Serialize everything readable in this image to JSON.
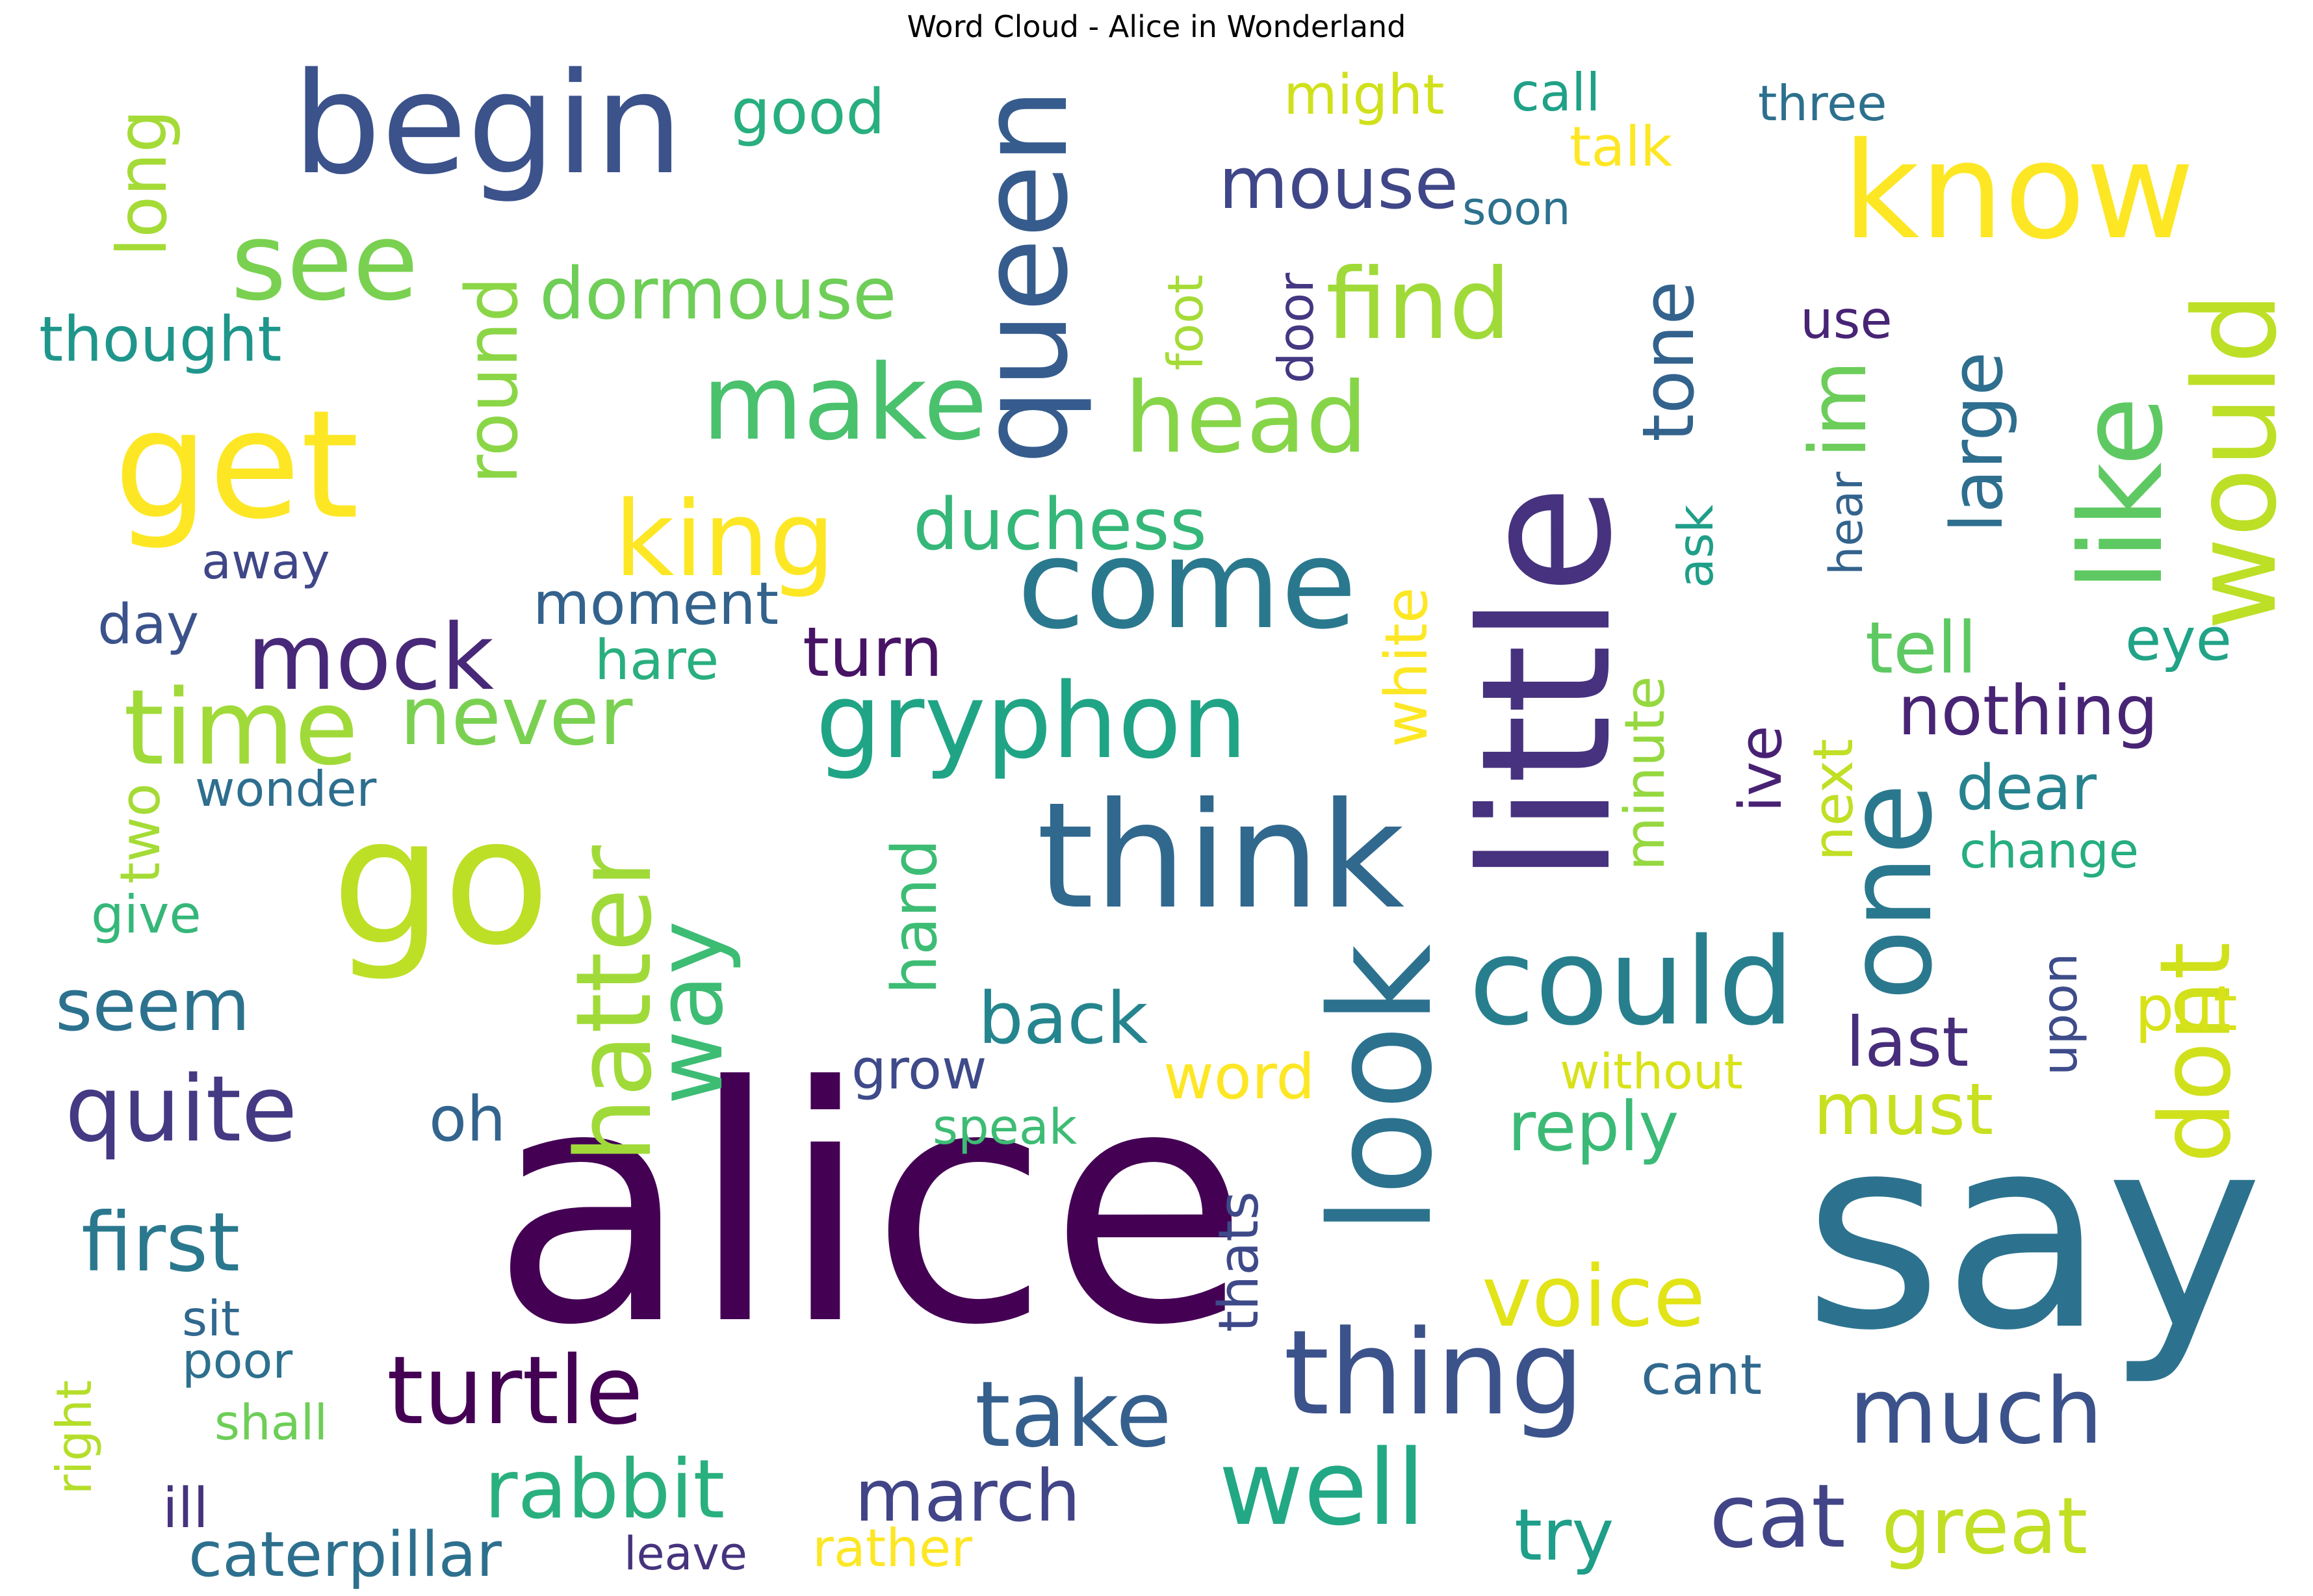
{
  "chart_data": {
    "type": "wordcloud",
    "title": "Word Cloud - Alice in Wonderland",
    "colormap": "viridis",
    "words": [
      {
        "text": "alice",
        "weight": 1.0,
        "color": "#440154",
        "orientation": "horizontal"
      },
      {
        "text": "say",
        "weight": 0.95,
        "color": "#2c728e",
        "orientation": "horizontal"
      },
      {
        "text": "little",
        "weight": 0.62,
        "color": "#46327e",
        "orientation": "vertical"
      },
      {
        "text": "go",
        "weight": 0.6,
        "color": "#bddf26",
        "orientation": "horizontal"
      },
      {
        "text": "think",
        "weight": 0.5,
        "color": "#31688e",
        "orientation": "horizontal"
      },
      {
        "text": "look",
        "weight": 0.48,
        "color": "#2c728e",
        "orientation": "vertical"
      },
      {
        "text": "begin",
        "weight": 0.45,
        "color": "#3b528b",
        "orientation": "horizontal"
      },
      {
        "text": "queen",
        "weight": 0.45,
        "color": "#365c8d",
        "orientation": "vertical"
      },
      {
        "text": "know",
        "weight": 0.44,
        "color": "#fde725",
        "orientation": "horizontal"
      },
      {
        "text": "get",
        "weight": 0.44,
        "color": "#fde725",
        "orientation": "horizontal"
      },
      {
        "text": "come",
        "weight": 0.42,
        "color": "#2a788e",
        "orientation": "horizontal"
      },
      {
        "text": "one",
        "weight": 0.4,
        "color": "#2a788e",
        "orientation": "vertical"
      },
      {
        "text": "like",
        "weight": 0.38,
        "color": "#5ec962",
        "orientation": "vertical"
      },
      {
        "text": "would",
        "weight": 0.37,
        "color": "#bddf26",
        "orientation": "vertical"
      },
      {
        "text": "could",
        "weight": 0.35,
        "color": "#277f8e",
        "orientation": "horizontal"
      },
      {
        "text": "thing",
        "weight": 0.35,
        "color": "#3b528b",
        "orientation": "horizontal"
      },
      {
        "text": "make",
        "weight": 0.33,
        "color": "#4ac16d",
        "orientation": "horizontal"
      },
      {
        "text": "see",
        "weight": 0.33,
        "color": "#7ad151",
        "orientation": "horizontal"
      },
      {
        "text": "time",
        "weight": 0.33,
        "color": "#a0da39",
        "orientation": "horizontal"
      },
      {
        "text": "hatter",
        "weight": 0.32,
        "color": "#a0da39",
        "orientation": "vertical"
      },
      {
        "text": "gryphon",
        "weight": 0.32,
        "color": "#20a486",
        "orientation": "horizontal"
      },
      {
        "text": "well",
        "weight": 0.31,
        "color": "#22a884",
        "orientation": "horizontal"
      },
      {
        "text": "head",
        "weight": 0.31,
        "color": "#86d549",
        "orientation": "horizontal"
      },
      {
        "text": "king",
        "weight": 0.31,
        "color": "#fde725",
        "orientation": "horizontal"
      },
      {
        "text": "find",
        "weight": 0.3,
        "color": "#a0da39",
        "orientation": "horizontal"
      },
      {
        "text": "dont",
        "weight": 0.3,
        "color": "#d0e11c",
        "orientation": "vertical"
      },
      {
        "text": "mock",
        "weight": 0.29,
        "color": "#482878",
        "orientation": "horizontal"
      },
      {
        "text": "turtle",
        "weight": 0.29,
        "color": "#440154",
        "orientation": "horizontal"
      },
      {
        "text": "quite",
        "weight": 0.28,
        "color": "#443983",
        "orientation": "horizontal"
      },
      {
        "text": "way",
        "weight": 0.28,
        "color": "#3dbc74",
        "orientation": "vertical"
      },
      {
        "text": "voice",
        "weight": 0.27,
        "color": "#e2e418",
        "orientation": "horizontal"
      },
      {
        "text": "cat",
        "weight": 0.27,
        "color": "#414487",
        "orientation": "horizontal"
      },
      {
        "text": "take",
        "weight": 0.27,
        "color": "#355f8d",
        "orientation": "horizontal"
      },
      {
        "text": "much",
        "weight": 0.26,
        "color": "#3b528b",
        "orientation": "horizontal"
      },
      {
        "text": "rabbit",
        "weight": 0.26,
        "color": "#2ab07f",
        "orientation": "horizontal"
      },
      {
        "text": "first",
        "weight": 0.25,
        "color": "#2a788e",
        "orientation": "horizontal"
      },
      {
        "text": "never",
        "weight": 0.25,
        "color": "#7ad151",
        "orientation": "horizontal"
      },
      {
        "text": "great",
        "weight": 0.24,
        "color": "#c2df23",
        "orientation": "horizontal"
      },
      {
        "text": "duchess",
        "weight": 0.23,
        "color": "#35b779",
        "orientation": "horizontal"
      },
      {
        "text": "im",
        "weight": 0.23,
        "color": "#6ccd5a",
        "orientation": "vertical"
      },
      {
        "text": "tone",
        "weight": 0.22,
        "color": "#33638d",
        "orientation": "vertical"
      },
      {
        "text": "dormouse",
        "weight": 0.22,
        "color": "#6ece58",
        "orientation": "horizontal"
      },
      {
        "text": "try",
        "weight": 0.22,
        "color": "#1f9e89",
        "orientation": "horizontal"
      },
      {
        "text": "must",
        "weight": 0.22,
        "color": "#c8e020",
        "orientation": "horizontal"
      },
      {
        "text": "round",
        "weight": 0.21,
        "color": "#8bd646",
        "orientation": "vertical"
      },
      {
        "text": "mouse",
        "weight": 0.21,
        "color": "#3f4788",
        "orientation": "horizontal"
      },
      {
        "text": "large",
        "weight": 0.21,
        "color": "#2e6e8e",
        "orientation": "vertical"
      },
      {
        "text": "tell",
        "weight": 0.21,
        "color": "#5ec962",
        "orientation": "horizontal"
      },
      {
        "text": "back",
        "weight": 0.2,
        "color": "#25858e",
        "orientation": "horizontal"
      },
      {
        "text": "march",
        "weight": 0.2,
        "color": "#414487",
        "orientation": "horizontal"
      },
      {
        "text": "seem",
        "weight": 0.2,
        "color": "#2c728e",
        "orientation": "horizontal"
      },
      {
        "text": "turn",
        "weight": 0.19,
        "color": "#471365",
        "orientation": "horizontal"
      },
      {
        "text": "nothing",
        "weight": 0.19,
        "color": "#482475",
        "orientation": "horizontal"
      },
      {
        "text": "reply",
        "weight": 0.19,
        "color": "#3aba76",
        "orientation": "horizontal"
      },
      {
        "text": "last",
        "weight": 0.19,
        "color": "#472d7b",
        "orientation": "horizontal"
      },
      {
        "text": "long",
        "weight": 0.19,
        "color": "#a5db36",
        "orientation": "vertical"
      },
      {
        "text": "good",
        "weight": 0.18,
        "color": "#29af7f",
        "orientation": "horizontal"
      },
      {
        "text": "dear",
        "weight": 0.18,
        "color": "#26828e",
        "orientation": "horizontal"
      },
      {
        "text": "caterpillar",
        "weight": 0.18,
        "color": "#2d708e",
        "orientation": "horizontal"
      },
      {
        "text": "oh",
        "weight": 0.18,
        "color": "#32648e",
        "orientation": "horizontal"
      },
      {
        "text": "word",
        "weight": 0.18,
        "color": "#fde725",
        "orientation": "horizontal"
      },
      {
        "text": "thought",
        "weight": 0.18,
        "color": "#1f968b",
        "orientation": "horizontal"
      },
      {
        "text": "put",
        "weight": 0.18,
        "color": "#d8e219",
        "orientation": "horizontal"
      },
      {
        "text": "hand",
        "weight": 0.18,
        "color": "#3dbc74",
        "orientation": "vertical"
      },
      {
        "text": "white",
        "weight": 0.17,
        "color": "#fde725",
        "orientation": "vertical"
      },
      {
        "text": "moment",
        "weight": 0.17,
        "color": "#33638d",
        "orientation": "horizontal"
      },
      {
        "text": "eye",
        "weight": 0.17,
        "color": "#20a386",
        "orientation": "horizontal"
      },
      {
        "text": "two",
        "weight": 0.17,
        "color": "#a5db36",
        "orientation": "vertical"
      },
      {
        "text": "ill",
        "weight": 0.17,
        "color": "#46337e",
        "orientation": "horizontal"
      },
      {
        "text": "minute",
        "weight": 0.16,
        "color": "#95d840",
        "orientation": "vertical"
      },
      {
        "text": "thats",
        "weight": 0.16,
        "color": "#3e4989",
        "orientation": "vertical"
      },
      {
        "text": "grow",
        "weight": 0.16,
        "color": "#3e4a89",
        "orientation": "horizontal"
      },
      {
        "text": "ive",
        "weight": 0.16,
        "color": "#482173",
        "orientation": "vertical"
      },
      {
        "text": "hare",
        "weight": 0.16,
        "color": "#29af7f",
        "orientation": "horizontal"
      },
      {
        "text": "next",
        "weight": 0.15,
        "color": "#c0df25",
        "orientation": "vertical"
      },
      {
        "text": "might",
        "weight": 0.15,
        "color": "#d0e11c",
        "orientation": "horizontal"
      },
      {
        "text": "talk",
        "weight": 0.15,
        "color": "#fde725",
        "orientation": "horizontal"
      },
      {
        "text": "cant",
        "weight": 0.15,
        "color": "#31688e",
        "orientation": "horizontal"
      },
      {
        "text": "day",
        "weight": 0.15,
        "color": "#3b528b",
        "orientation": "horizontal"
      },
      {
        "text": "give",
        "weight": 0.15,
        "color": "#35b779",
        "orientation": "horizontal"
      },
      {
        "text": "use",
        "weight": 0.15,
        "color": "#482475",
        "orientation": "horizontal"
      },
      {
        "text": "call",
        "weight": 0.15,
        "color": "#1fa187",
        "orientation": "horizontal"
      },
      {
        "text": "foot",
        "weight": 0.15,
        "color": "#a5db36",
        "orientation": "vertical"
      },
      {
        "text": "right",
        "weight": 0.15,
        "color": "#b5de2b",
        "orientation": "vertical"
      },
      {
        "text": "speak",
        "weight": 0.15,
        "color": "#3dbc74",
        "orientation": "horizontal"
      },
      {
        "text": "door",
        "weight": 0.14,
        "color": "#453781",
        "orientation": "vertical"
      },
      {
        "text": "three",
        "weight": 0.14,
        "color": "#2d708e",
        "orientation": "horizontal"
      },
      {
        "text": "without",
        "weight": 0.14,
        "color": "#d8e219",
        "orientation": "horizontal"
      },
      {
        "text": "ask",
        "weight": 0.14,
        "color": "#1f9e89",
        "orientation": "vertical"
      },
      {
        "text": "wonder",
        "weight": 0.14,
        "color": "#2e6e8e",
        "orientation": "horizontal"
      },
      {
        "text": "change",
        "weight": 0.14,
        "color": "#26ad81",
        "orientation": "horizontal"
      },
      {
        "text": "sit",
        "weight": 0.14,
        "color": "#31688e",
        "orientation": "horizontal"
      },
      {
        "text": "away",
        "weight": 0.14,
        "color": "#3f4788",
        "orientation": "horizontal"
      },
      {
        "text": "poor",
        "weight": 0.14,
        "color": "#2d708e",
        "orientation": "horizontal"
      },
      {
        "text": "upon",
        "weight": 0.14,
        "color": "#3e4c8a",
        "orientation": "vertical"
      },
      {
        "text": "shall",
        "weight": 0.14,
        "color": "#6ece58",
        "orientation": "horizontal"
      },
      {
        "text": "hear",
        "weight": 0.13,
        "color": "#33638d",
        "orientation": "vertical"
      },
      {
        "text": "leave",
        "weight": 0.13,
        "color": "#46337e",
        "orientation": "horizontal"
      },
      {
        "text": "soon",
        "weight": 0.13,
        "color": "#2c728e",
        "orientation": "horizontal"
      },
      {
        "text": "rather",
        "weight": 0.13,
        "color": "#fde725",
        "orientation": "horizontal"
      }
    ]
  }
}
